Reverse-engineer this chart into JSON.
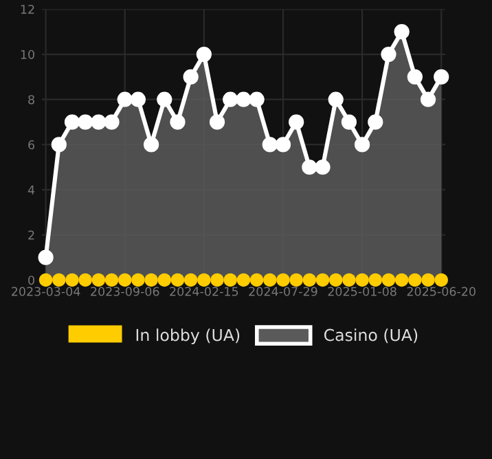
{
  "chart_data": {
    "type": "area",
    "categories": [
      "2023-03-04",
      null,
      null,
      null,
      null,
      null,
      "2023-09-06",
      null,
      null,
      null,
      null,
      null,
      "2024-02-15",
      null,
      null,
      null,
      null,
      null,
      "2024-07-29",
      null,
      null,
      null,
      null,
      null,
      "2025-01-08",
      null,
      null,
      null,
      null,
      null,
      "2025-06-20"
    ],
    "series": [
      {
        "name": "In lobby (UA)",
        "type": "scatter",
        "color": "#ffcc00",
        "values": [
          0,
          0,
          0,
          0,
          0,
          0,
          0,
          0,
          0,
          0,
          0,
          0,
          0,
          0,
          0,
          0,
          0,
          0,
          0,
          0,
          0,
          0,
          0,
          0,
          0,
          0,
          0,
          0,
          0,
          0,
          0
        ]
      },
      {
        "name": "Casino (UA)",
        "color": "#ffffff",
        "values": [
          1,
          6,
          7,
          7,
          7,
          7,
          8,
          8,
          6,
          8,
          7,
          9,
          10,
          7,
          8,
          8,
          8,
          6,
          6,
          7,
          5,
          5,
          8,
          7,
          6,
          7,
          10,
          11,
          9,
          8,
          9
        ]
      }
    ],
    "ylim": [
      0,
      12
    ],
    "yticks": [
      0,
      2,
      4,
      6,
      8,
      10,
      12
    ],
    "grid": true,
    "legend": "bottom",
    "marker": "circle"
  }
}
